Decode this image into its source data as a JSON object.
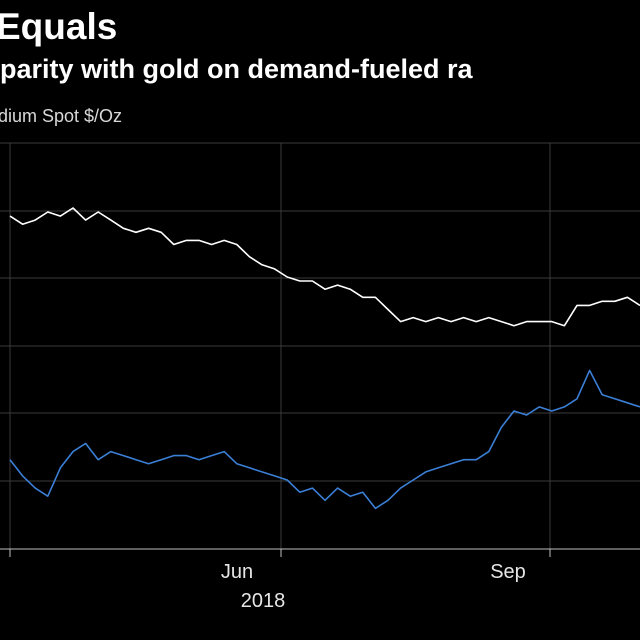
{
  "header": {
    "title": "Equals",
    "subtitle": "parity with gold on demand-fueled ra",
    "legend_label": "dium Spot $/Oz"
  },
  "colors": {
    "background": "#000000",
    "gold_line": "#ffffff",
    "palladium_line": "#3b7fd6",
    "grid": "#3a3a3a"
  },
  "chart_data": {
    "type": "line",
    "x_tick_labels": [
      "Jun",
      "Sep"
    ],
    "x_year_label": "2018",
    "grid": true,
    "x_range": [
      0,
      100
    ],
    "y_range": [
      0,
      100
    ],
    "series": [
      {
        "color": "#ffffff",
        "x": [
          0,
          2,
          4,
          6,
          8,
          10,
          12,
          14,
          16,
          18,
          20,
          22,
          24,
          26,
          28,
          30,
          32,
          34,
          36,
          38,
          40,
          42,
          44,
          46,
          48,
          50,
          52,
          54,
          56,
          58,
          60,
          62,
          64,
          66,
          68,
          70,
          72,
          74,
          76,
          78,
          80,
          82,
          84,
          86,
          88,
          90,
          92,
          94,
          96,
          98,
          100
        ],
        "values": [
          82,
          80,
          81,
          83,
          82,
          84,
          81,
          83,
          81,
          79,
          78,
          79,
          78,
          75,
          76,
          76,
          75,
          76,
          75,
          72,
          70,
          69,
          67,
          66,
          66,
          64,
          65,
          64,
          62,
          62,
          59,
          56,
          57,
          56,
          57,
          56,
          57,
          56,
          57,
          56,
          55,
          56,
          56,
          56,
          55,
          60,
          60,
          61,
          61,
          62,
          60
        ]
      },
      {
        "color": "#3b7fd6",
        "x": [
          0,
          2,
          4,
          6,
          8,
          10,
          12,
          14,
          16,
          18,
          20,
          22,
          24,
          26,
          28,
          30,
          32,
          34,
          36,
          38,
          40,
          42,
          44,
          46,
          48,
          50,
          52,
          54,
          56,
          58,
          60,
          62,
          64,
          66,
          68,
          70,
          72,
          74,
          76,
          78,
          80,
          82,
          84,
          86,
          88,
          90,
          92,
          94,
          96,
          98,
          100
        ],
        "values": [
          22,
          18,
          15,
          13,
          20,
          24,
          26,
          22,
          24,
          23,
          22,
          21,
          22,
          23,
          23,
          22,
          23,
          24,
          21,
          20,
          19,
          18,
          17,
          14,
          15,
          12,
          15,
          13,
          14,
          10,
          12,
          15,
          17,
          19,
          20,
          21,
          22,
          22,
          24,
          30,
          34,
          33,
          35,
          34,
          35,
          37,
          44,
          38,
          37,
          36,
          35
        ]
      }
    ]
  }
}
